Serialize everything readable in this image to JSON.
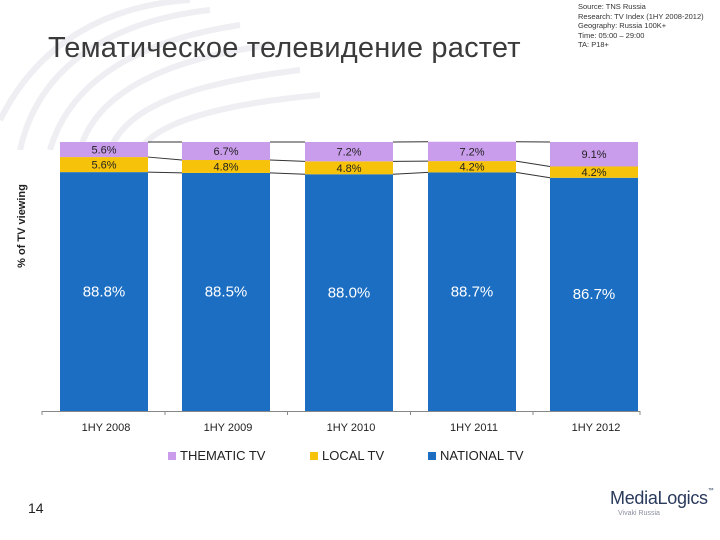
{
  "slide": {
    "title": "Тематическое телевидение растет",
    "page_number": "14",
    "source_lines": [
      "Source: TNS Russia",
      "Research: TV Index (1HY 2008-2012)",
      "Geography: Russia 100K+",
      "Time: 05:00 – 29:00",
      "TA: P18+"
    ],
    "logo": {
      "name": "MediaLogics",
      "mark": "™",
      "sub": "Vivaki Russia"
    }
  },
  "colors": {
    "thematic": "#c99cec",
    "local": "#f7c30a",
    "national": "#1b6ec2",
    "label_on_blue": "#ffffff",
    "label_on_top": "#222222",
    "title": "#3a3a3a"
  },
  "chart_data": {
    "type": "bar",
    "stacked": true,
    "categories": [
      "1HY 2008",
      "1HY 2009",
      "1HY 2010",
      "1HY 2011",
      "1HY 2012"
    ],
    "ylabel": "% of TV viewing",
    "ylim": [
      0,
      100
    ],
    "grid": false,
    "legend_position": "bottom",
    "series": [
      {
        "name": "NATIONAL TV",
        "key": "national",
        "values": [
          88.8,
          88.5,
          88.0,
          88.7,
          86.7
        ],
        "labels": [
          "88.8%",
          "88.5%",
          "88.0%",
          "88.7%",
          "86.7%"
        ]
      },
      {
        "name": "LOCAL TV",
        "key": "local",
        "values": [
          5.6,
          4.8,
          4.8,
          4.2,
          4.2
        ],
        "labels": [
          "5.6%",
          "4.8%",
          "4.8%",
          "4.2%",
          "4.2%"
        ]
      },
      {
        "name": "THEMATIC TV",
        "key": "thematic",
        "values": [
          5.6,
          6.7,
          7.2,
          7.2,
          9.1
        ],
        "labels": [
          "5.6%",
          "6.7%",
          "7.2%",
          "7.2%",
          "9.1%"
        ]
      }
    ],
    "legend_order": [
      "thematic",
      "local",
      "national"
    ]
  }
}
